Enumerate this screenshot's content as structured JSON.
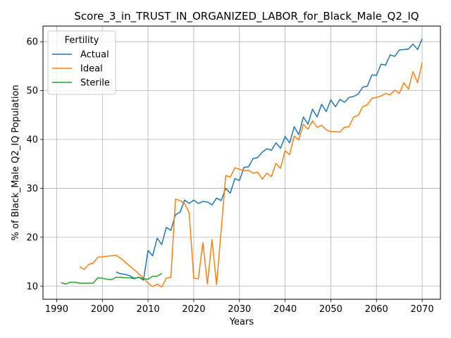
{
  "chart_data": {
    "type": "line",
    "title": "Score_3_in_TRUST_IN_ORGANIZED_LABOR_for_Black_Male_Q2_IQ",
    "xlabel": "Years",
    "ylabel": "% of Black_Male Q2_IQ Population",
    "xlim": [
      1987,
      2074
    ],
    "ylim": [
      7.3,
      63.2
    ],
    "xticks": [
      1990,
      2000,
      2010,
      2020,
      2030,
      2040,
      2050,
      2060,
      2070
    ],
    "yticks": [
      10,
      20,
      30,
      40,
      50,
      60
    ],
    "grid": true,
    "legend": {
      "title": "Fertility",
      "position": "top-left"
    },
    "series": [
      {
        "name": "Actual",
        "color": "#1f77b4",
        "x": [
          2003,
          2004,
          2005,
          2006,
          2007,
          2008,
          2009,
          2010,
          2011,
          2012,
          2013,
          2014,
          2015,
          2016,
          2017,
          2018,
          2019,
          2020,
          2021,
          2022,
          2023,
          2024,
          2025,
          2026,
          2027,
          2028,
          2029,
          2030,
          2031,
          2032,
          2033,
          2034,
          2035,
          2036,
          2037,
          2038,
          2039,
          2040,
          2041,
          2042,
          2043,
          2044,
          2045,
          2046,
          2047,
          2048,
          2049,
          2050,
          2051,
          2052,
          2053,
          2054,
          2055,
          2056,
          2057,
          2058,
          2059,
          2060,
          2061,
          2062,
          2063,
          2064,
          2065,
          2066,
          2067,
          2068,
          2069,
          2070
        ],
        "values": [
          12.9,
          12.5,
          12.4,
          12.1,
          11.6,
          11.8,
          11.2,
          17.3,
          16.2,
          19.8,
          18.5,
          22.0,
          21.4,
          24.6,
          25.1,
          27.6,
          26.9,
          27.6,
          26.9,
          27.3,
          27.2,
          26.6,
          28.0,
          27.5,
          30.0,
          29.0,
          32.0,
          31.6,
          34.3,
          34.4,
          36.1,
          36.3,
          37.4,
          38.1,
          37.8,
          39.3,
          38.2,
          40.6,
          39.3,
          42.6,
          41.0,
          44.6,
          43.1,
          46.2,
          44.6,
          47.2,
          45.7,
          48.1,
          46.7,
          48.2,
          47.6,
          48.6,
          48.8,
          49.3,
          50.7,
          50.9,
          53.2,
          53.1,
          55.4,
          55.2,
          57.3,
          57.0,
          58.3,
          58.4,
          58.5,
          59.5,
          58.4,
          60.6
        ]
      },
      {
        "name": "Ideal",
        "color": "#ff7f0e",
        "x": [
          1995,
          1996,
          1997,
          1998,
          1999,
          2000,
          2001,
          2002,
          2003,
          2004,
          2005,
          2006,
          2007,
          2008,
          2009,
          2010,
          2011,
          2012,
          2013,
          2014,
          2015,
          2016,
          2017,
          2018,
          2019,
          2020,
          2021,
          2022,
          2023,
          2024,
          2025,
          2026,
          2027,
          2028,
          2029,
          2030,
          2031,
          2032,
          2033,
          2034,
          2035,
          2036,
          2037,
          2038,
          2039,
          2040,
          2041,
          2042,
          2043,
          2044,
          2045,
          2046,
          2047,
          2048,
          2049,
          2050,
          2051,
          2052,
          2053,
          2054,
          2055,
          2056,
          2057,
          2058,
          2059,
          2060,
          2061,
          2062,
          2063,
          2064,
          2065,
          2066,
          2067,
          2068,
          2069,
          2070
        ],
        "values": [
          14.0,
          13.4,
          14.4,
          14.7,
          15.9,
          16.0,
          16.1,
          16.2,
          16.3,
          15.7,
          14.9,
          14.1,
          13.3,
          12.5,
          11.7,
          10.6,
          9.9,
          10.4,
          9.8,
          11.6,
          11.8,
          27.8,
          27.5,
          26.9,
          25.0,
          11.6,
          11.5,
          18.9,
          10.4,
          19.5,
          10.3,
          21.3,
          32.6,
          32.3,
          34.2,
          33.9,
          33.6,
          33.7,
          33.1,
          33.3,
          31.9,
          33.1,
          32.4,
          35.1,
          34.1,
          37.7,
          36.9,
          40.7,
          39.9,
          43.1,
          42.1,
          43.8,
          42.5,
          42.9,
          42.0,
          41.6,
          41.6,
          41.5,
          42.5,
          42.6,
          44.6,
          44.9,
          46.7,
          47.1,
          48.4,
          48.6,
          48.9,
          49.4,
          49.1,
          50.1,
          49.4,
          51.6,
          50.3,
          53.9,
          51.6,
          55.7
        ]
      },
      {
        "name": "Sterile",
        "color": "#2ca02c",
        "x": [
          1991,
          1992,
          1993,
          1994,
          1995,
          1996,
          1997,
          1998,
          1999,
          2000,
          2001,
          2002,
          2003,
          2004,
          2005,
          2006,
          2007,
          2008,
          2009,
          2010,
          2011,
          2012,
          2013
        ],
        "values": [
          10.7,
          10.4,
          10.8,
          10.8,
          10.6,
          10.6,
          10.6,
          10.6,
          11.7,
          11.6,
          11.4,
          11.3,
          11.8,
          11.8,
          11.7,
          11.7,
          11.5,
          11.8,
          11.5,
          11.4,
          12.0,
          12.0,
          12.6
        ]
      }
    ]
  }
}
